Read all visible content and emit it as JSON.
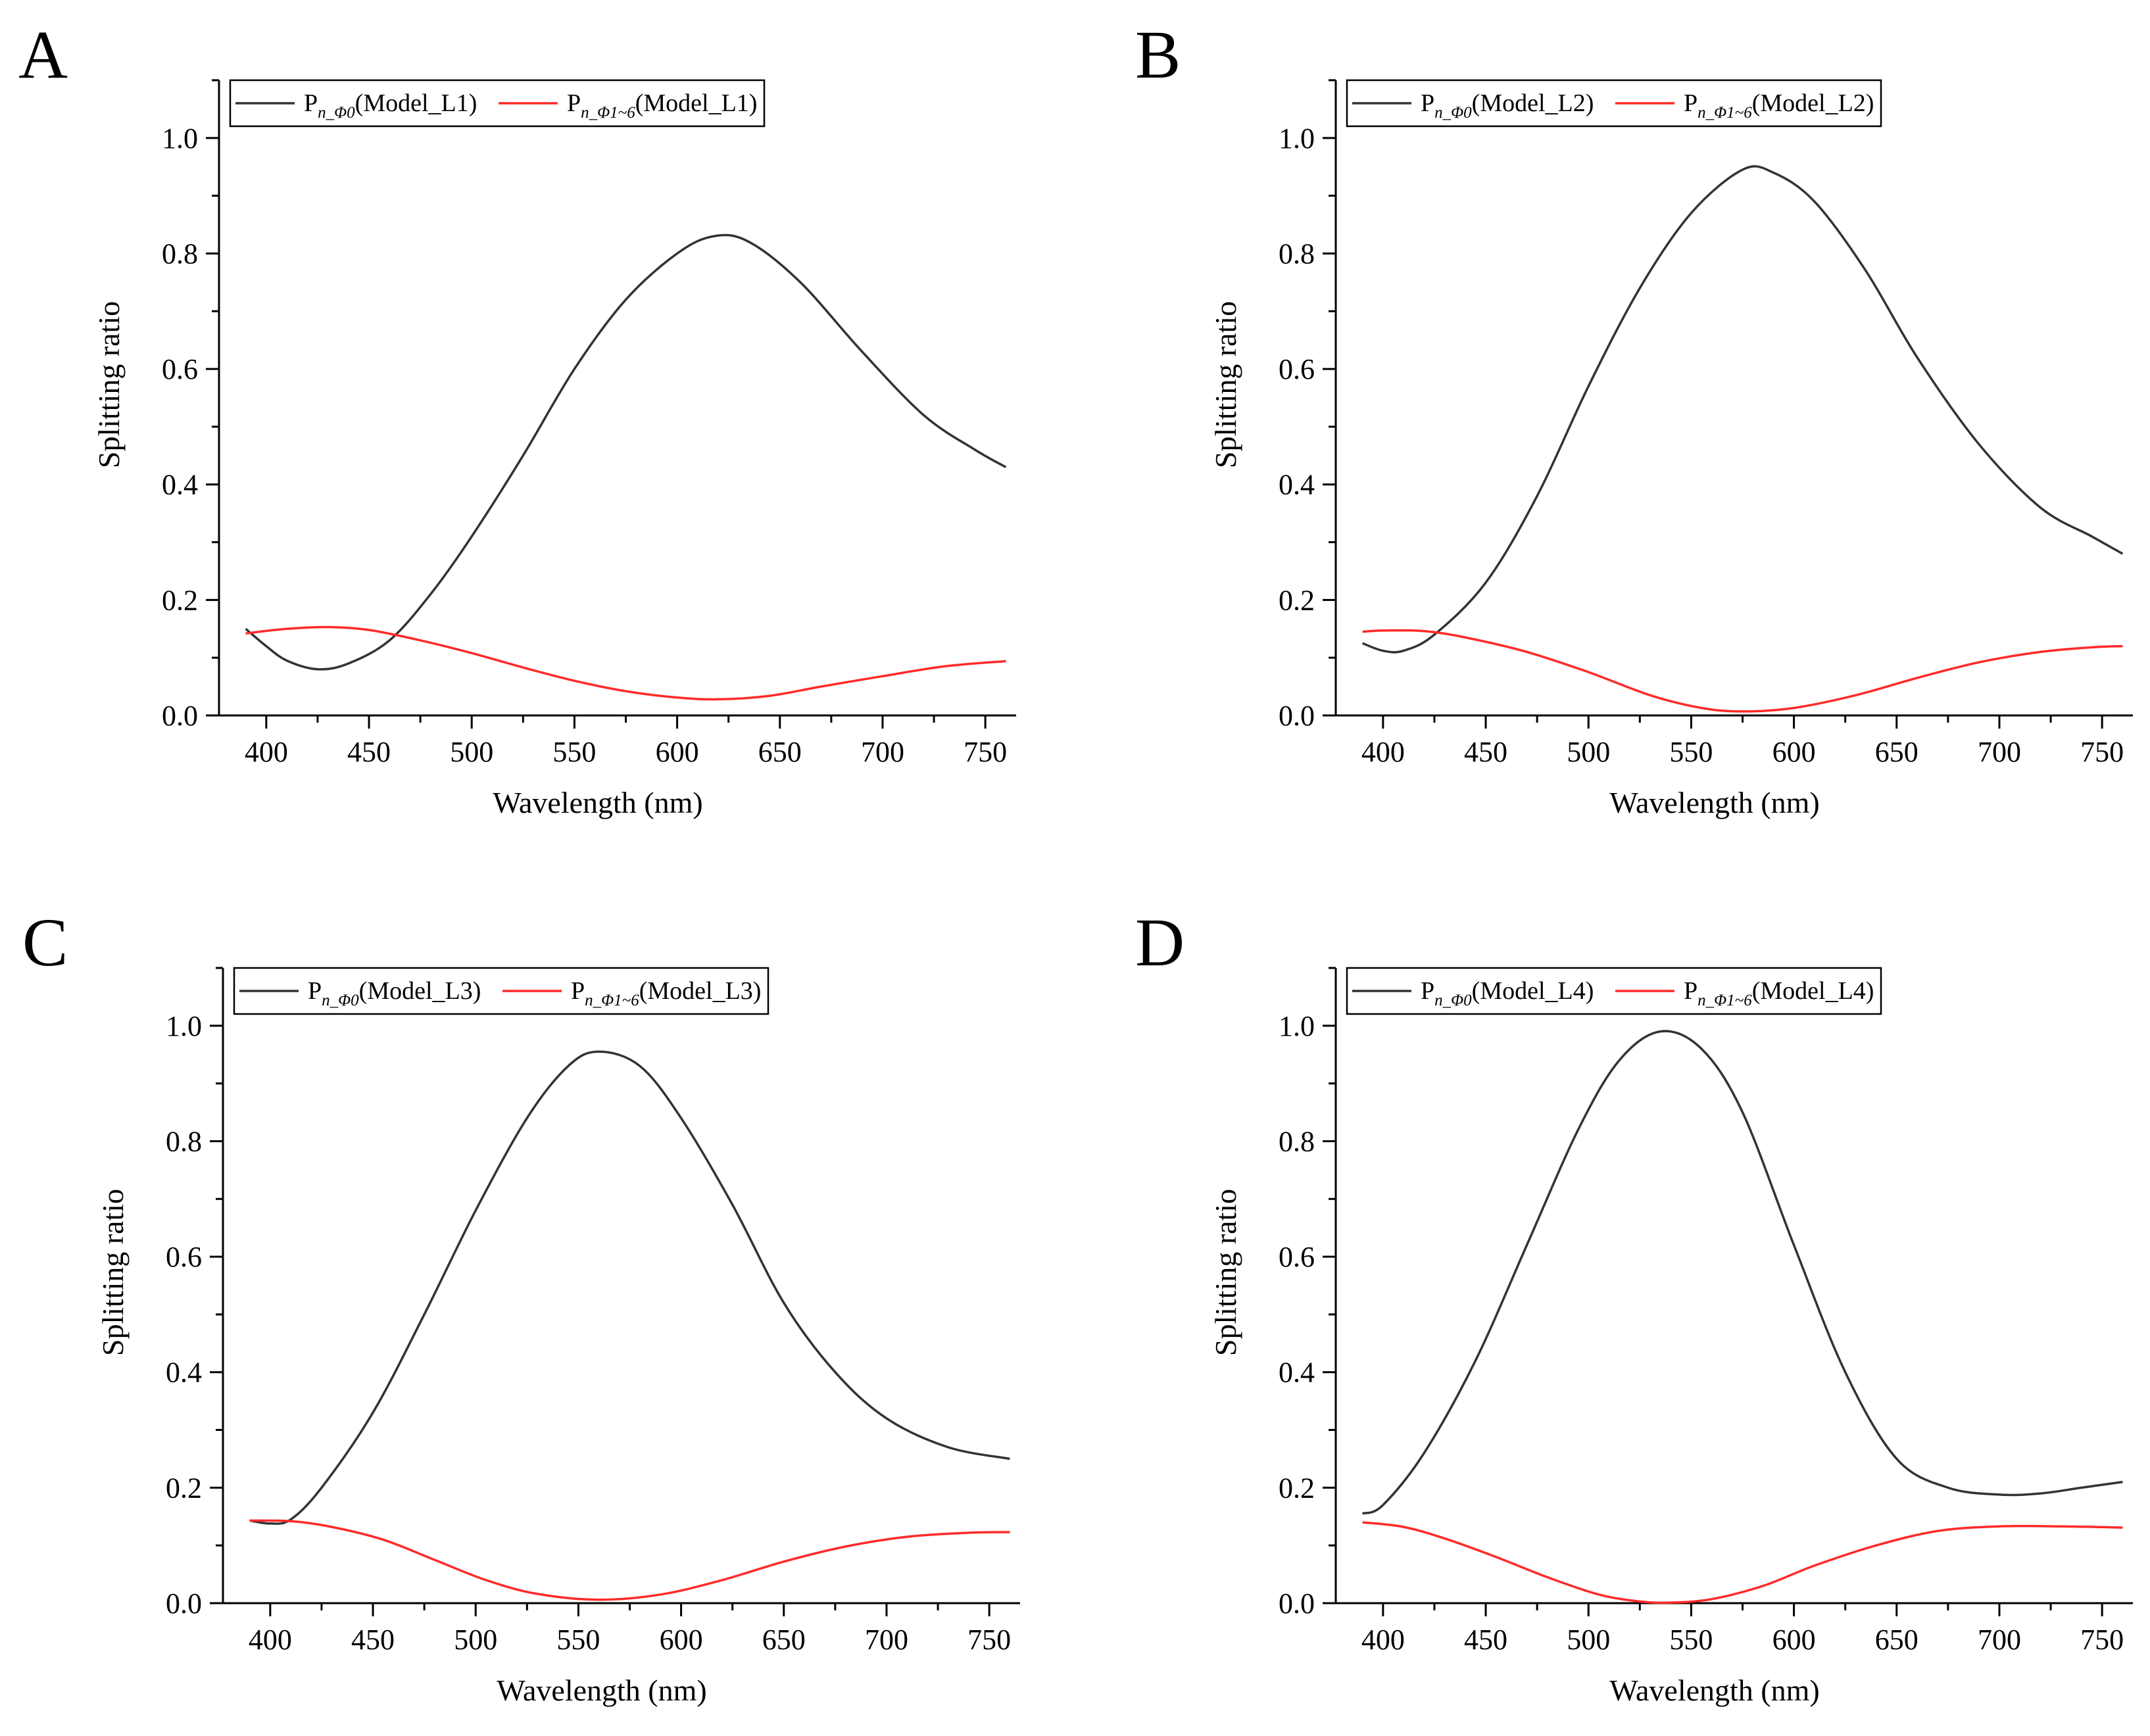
{
  "chart_data": [
    {
      "panel": "A",
      "type": "line",
      "xlabel": "Wavelength (nm)",
      "ylabel": "Splitting ratio",
      "xlim": [
        377,
        765
      ],
      "ylim": [
        0,
        1.1
      ],
      "xticks": [
        400,
        450,
        500,
        550,
        600,
        650,
        700,
        750
      ],
      "yticks": [
        0.0,
        0.2,
        0.4,
        0.6,
        0.8,
        1.0
      ],
      "legend_position": "top-left",
      "series": [
        {
          "name": "P_n_Φ0(Model_L1)",
          "legend": {
            "main": "P",
            "sub": "n_Φ0",
            "suffix": "(Model_L1)"
          },
          "color": "#333333",
          "points": [
            [
              390,
              0.15
            ],
            [
              400,
              0.12
            ],
            [
              410,
              0.095
            ],
            [
              425,
              0.08
            ],
            [
              440,
              0.09
            ],
            [
              460,
              0.13
            ],
            [
              480,
              0.21
            ],
            [
              500,
              0.31
            ],
            [
              525,
              0.45
            ],
            [
              550,
              0.6
            ],
            [
              575,
              0.72
            ],
            [
              600,
              0.8
            ],
            [
              618,
              0.83
            ],
            [
              635,
              0.82
            ],
            [
              660,
              0.75
            ],
            [
              690,
              0.63
            ],
            [
              720,
              0.52
            ],
            [
              745,
              0.46
            ],
            [
              760,
              0.43
            ]
          ]
        },
        {
          "name": "P_n_Φ1~6(Model_L1)",
          "legend": {
            "main": "P",
            "sub": "n_Φ1~6",
            "suffix": "(Model_L1)"
          },
          "color": "#ff2a2a",
          "points": [
            [
              390,
              0.142
            ],
            [
              410,
              0.15
            ],
            [
              430,
              0.153
            ],
            [
              450,
              0.148
            ],
            [
              475,
              0.13
            ],
            [
              500,
              0.108
            ],
            [
              525,
              0.083
            ],
            [
              550,
              0.06
            ],
            [
              575,
              0.042
            ],
            [
              600,
              0.031
            ],
            [
              620,
              0.028
            ],
            [
              645,
              0.034
            ],
            [
              670,
              0.05
            ],
            [
              700,
              0.068
            ],
            [
              730,
              0.085
            ],
            [
              760,
              0.094
            ]
          ]
        }
      ]
    },
    {
      "panel": "B",
      "type": "line",
      "xlabel": "Wavelength (nm)",
      "ylabel": "Splitting ratio",
      "xlim": [
        377,
        765
      ],
      "ylim": [
        0,
        1.1
      ],
      "xticks": [
        400,
        450,
        500,
        550,
        600,
        650,
        700,
        750
      ],
      "yticks": [
        0.0,
        0.2,
        0.4,
        0.6,
        0.8,
        1.0
      ],
      "legend_position": "top-left",
      "series": [
        {
          "name": "P_n_Φ0(Model_L2)",
          "legend": {
            "main": "P",
            "sub": "n_Φ0",
            "suffix": "(Model_L2)"
          },
          "color": "#333333",
          "points": [
            [
              390,
              0.125
            ],
            [
              400,
              0.112
            ],
            [
              410,
              0.112
            ],
            [
              425,
              0.14
            ],
            [
              450,
              0.23
            ],
            [
              475,
              0.38
            ],
            [
              500,
              0.57
            ],
            [
              525,
              0.74
            ],
            [
              550,
              0.87
            ],
            [
              575,
              0.945
            ],
            [
              590,
              0.94
            ],
            [
              610,
              0.89
            ],
            [
              635,
              0.77
            ],
            [
              660,
              0.62
            ],
            [
              690,
              0.47
            ],
            [
              720,
              0.36
            ],
            [
              745,
              0.31
            ],
            [
              760,
              0.28
            ]
          ]
        },
        {
          "name": "P_n_Φ1~6(Model_L2)",
          "legend": {
            "main": "P",
            "sub": "n_Φ1~6",
            "suffix": "(Model_L2)"
          },
          "color": "#ff2a2a",
          "points": [
            [
              390,
              0.145
            ],
            [
              400,
              0.147
            ],
            [
              420,
              0.146
            ],
            [
              440,
              0.135
            ],
            [
              470,
              0.11
            ],
            [
              500,
              0.075
            ],
            [
              530,
              0.035
            ],
            [
              555,
              0.013
            ],
            [
              575,
              0.007
            ],
            [
              600,
              0.013
            ],
            [
              630,
              0.035
            ],
            [
              660,
              0.065
            ],
            [
              690,
              0.092
            ],
            [
              720,
              0.11
            ],
            [
              745,
              0.118
            ],
            [
              760,
              0.12
            ]
          ]
        }
      ]
    },
    {
      "panel": "C",
      "type": "line",
      "xlabel": "Wavelength (nm)",
      "ylabel": "Splitting ratio",
      "xlim": [
        377,
        765
      ],
      "ylim": [
        0,
        1.1
      ],
      "xticks": [
        400,
        450,
        500,
        550,
        600,
        650,
        700,
        750
      ],
      "yticks": [
        0.0,
        0.2,
        0.4,
        0.6,
        0.8,
        1.0
      ],
      "legend_position": "top-left",
      "series": [
        {
          "name": "P_n_Φ0(Model_L3)",
          "legend": {
            "main": "P",
            "sub": "n_Φ0",
            "suffix": "(Model_L3)"
          },
          "color": "#333333",
          "points": [
            [
              390,
              0.143
            ],
            [
              400,
              0.138
            ],
            [
              410,
              0.145
            ],
            [
              425,
              0.2
            ],
            [
              450,
              0.33
            ],
            [
              475,
              0.5
            ],
            [
              500,
              0.68
            ],
            [
              525,
              0.84
            ],
            [
              545,
              0.93
            ],
            [
              560,
              0.955
            ],
            [
              580,
              0.93
            ],
            [
              600,
              0.84
            ],
            [
              625,
              0.69
            ],
            [
              650,
              0.52
            ],
            [
              675,
              0.4
            ],
            [
              700,
              0.32
            ],
            [
              730,
              0.27
            ],
            [
              760,
              0.25
            ]
          ]
        },
        {
          "name": "P_n_Φ1~6(Model_L3)",
          "legend": {
            "main": "P",
            "sub": "n_Φ1~6",
            "suffix": "(Model_L3)"
          },
          "color": "#ff2a2a",
          "points": [
            [
              390,
              0.143
            ],
            [
              410,
              0.142
            ],
            [
              430,
              0.132
            ],
            [
              455,
              0.11
            ],
            [
              480,
              0.075
            ],
            [
              505,
              0.04
            ],
            [
              530,
              0.016
            ],
            [
              560,
              0.006
            ],
            [
              590,
              0.015
            ],
            [
              620,
              0.04
            ],
            [
              650,
              0.072
            ],
            [
              680,
              0.098
            ],
            [
              710,
              0.115
            ],
            [
              740,
              0.122
            ],
            [
              760,
              0.123
            ]
          ]
        }
      ]
    },
    {
      "panel": "D",
      "type": "line",
      "xlabel": "Wavelength (nm)",
      "ylabel": "Splitting ratio",
      "xlim": [
        377,
        765
      ],
      "ylim": [
        0,
        1.1
      ],
      "xticks": [
        400,
        450,
        500,
        550,
        600,
        650,
        700,
        750
      ],
      "yticks": [
        0.0,
        0.2,
        0.4,
        0.6,
        0.8,
        1.0
      ],
      "legend_position": "top-left",
      "series": [
        {
          "name": "P_n_Φ0(Model_L4)",
          "legend": {
            "main": "P",
            "sub": "n_Φ0",
            "suffix": "(Model_L4)"
          },
          "color": "#333333",
          "points": [
            [
              390,
              0.155
            ],
            [
              400,
              0.17
            ],
            [
              420,
              0.26
            ],
            [
              445,
              0.42
            ],
            [
              470,
              0.62
            ],
            [
              495,
              0.82
            ],
            [
              515,
              0.94
            ],
            [
              535,
              0.99
            ],
            [
              555,
              0.96
            ],
            [
              575,
              0.85
            ],
            [
              600,
              0.62
            ],
            [
              625,
              0.4
            ],
            [
              650,
              0.25
            ],
            [
              675,
              0.2
            ],
            [
              700,
              0.188
            ],
            [
              720,
              0.19
            ],
            [
              740,
              0.2
            ],
            [
              760,
              0.21
            ]
          ]
        },
        {
          "name": "P_n_Φ1~6(Model_L4)",
          "legend": {
            "main": "P",
            "sub": "n_Φ1~6",
            "suffix": "(Model_L4)"
          },
          "color": "#ff2a2a",
          "points": [
            [
              390,
              0.14
            ],
            [
              410,
              0.132
            ],
            [
              430,
              0.112
            ],
            [
              455,
              0.08
            ],
            [
              480,
              0.045
            ],
            [
              505,
              0.015
            ],
            [
              525,
              0.003
            ],
            [
              540,
              0.001
            ],
            [
              560,
              0.007
            ],
            [
              585,
              0.03
            ],
            [
              610,
              0.065
            ],
            [
              640,
              0.1
            ],
            [
              670,
              0.125
            ],
            [
              700,
              0.133
            ],
            [
              730,
              0.133
            ],
            [
              760,
              0.131
            ]
          ]
        }
      ]
    }
  ]
}
